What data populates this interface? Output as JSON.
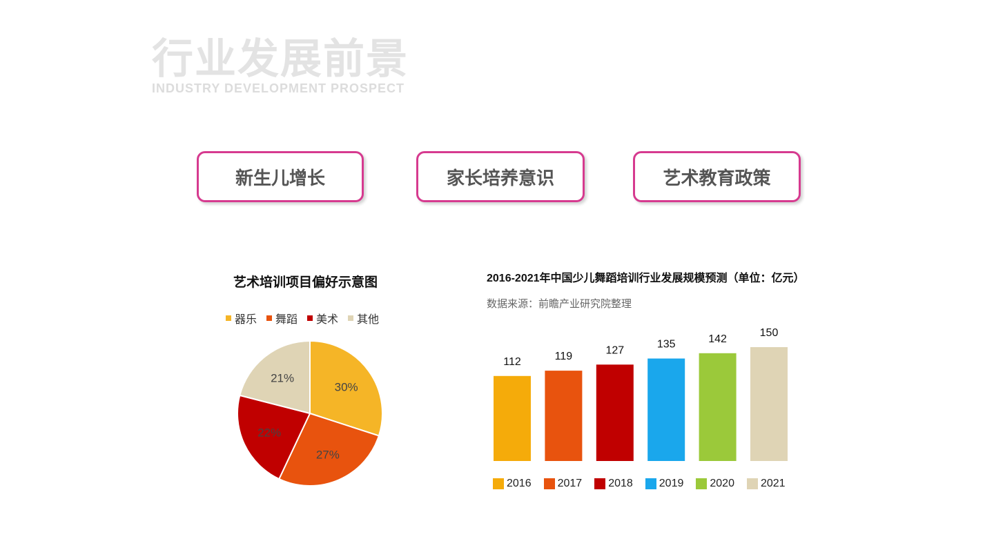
{
  "header": {
    "title_cn": "行业发展前景",
    "title_en": "INDUSTRY DEVELOPMENT PROSPECT"
  },
  "tags": [
    {
      "label": "新生儿增长"
    },
    {
      "label": "家长培养意识"
    },
    {
      "label": "艺术教育政策"
    }
  ],
  "chart_data": [
    {
      "type": "pie",
      "title": "艺术培训项目偏好示意图",
      "legend_placement": "top",
      "categories": [
        "器乐",
        "舞蹈",
        "美术",
        "其他"
      ],
      "values": [
        30,
        27,
        22,
        21
      ],
      "labels": [
        "30%",
        "27%",
        "22%",
        "21%"
      ],
      "colors": [
        "#f5b527",
        "#e8530e",
        "#c00000",
        "#dfd4b5"
      ]
    },
    {
      "type": "bar",
      "title": "2016-2021年中国少儿舞蹈培训行业发展规模预测（单位：亿元）",
      "source": "数据来源：前瞻产业研究院整理",
      "legend_placement": "bottom",
      "categories": [
        "2016",
        "2017",
        "2018",
        "2019",
        "2020",
        "2021"
      ],
      "values": [
        112,
        119,
        127,
        135,
        142,
        150
      ],
      "value_labels": [
        "112",
        "119",
        "127",
        "135",
        "142",
        "150"
      ],
      "colors": [
        "#f5ab0a",
        "#e8530e",
        "#c00000",
        "#1aa7ec",
        "#9bc93a",
        "#dfd4b5"
      ],
      "grid": false
    }
  ]
}
